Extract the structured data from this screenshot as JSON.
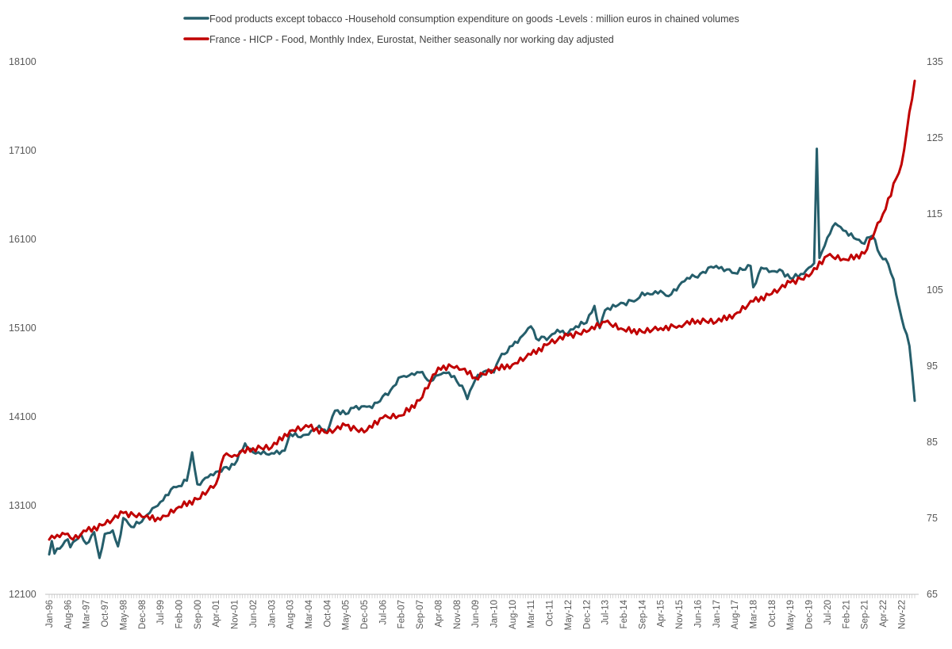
{
  "chart_data": {
    "type": "line",
    "title": "",
    "xlabel": "",
    "ylabel_left": "",
    "ylabel_right": "",
    "x_start": "Jan-96",
    "x_end": "Apr-23",
    "x_tick_labels": [
      "Jan-96",
      "Aug-96",
      "Mar-97",
      "Oct-97",
      "May-98",
      "Dec-98",
      "Jul-99",
      "Feb-00",
      "Sep-00",
      "Apr-01",
      "Nov-01",
      "Jun-02",
      "Jan-03",
      "Aug-03",
      "Mar-04",
      "Oct-04",
      "May-05",
      "Dec-05",
      "Jul-06",
      "Feb-07",
      "Sep-07",
      "Apr-08",
      "Nov-08",
      "Jun-09",
      "Jan-10",
      "Aug-10",
      "Mar-11",
      "Oct-11",
      "May-12",
      "Dec-12",
      "Jul-13",
      "Feb-14",
      "Sep-14",
      "Apr-15",
      "Nov-15",
      "Jun-16",
      "Jan-17",
      "Aug-17",
      "Mar-18",
      "Oct-18",
      "May-19",
      "Dec-19",
      "Jul-20",
      "Feb-21",
      "Sep-21",
      "Apr-22",
      "Nov-22"
    ],
    "y_left": {
      "min": 12100,
      "max": 18100,
      "ticks": [
        "12100",
        "13100",
        "14100",
        "15100",
        "16100",
        "17100",
        "18100"
      ]
    },
    "y_right": {
      "min": 65,
      "max": 135,
      "ticks": [
        "65",
        "75",
        "85",
        "95",
        "105",
        "115",
        "125",
        "135"
      ]
    },
    "legend_position": "top",
    "series": [
      {
        "name": "Food products except tobacco -Household consumption expenditure on goods -Levels : million euros in chained volumes",
        "axis": "left",
        "color": "#255e6b",
        "anchors": [
          [
            "Jan-96",
            12550
          ],
          [
            "Feb-96",
            12700
          ],
          [
            "Mar-96",
            12560
          ],
          [
            "Jun-96",
            12650
          ],
          [
            "Aug-96",
            12720
          ],
          [
            "Sep-96",
            12630
          ],
          [
            "Jan-97",
            12780
          ],
          [
            "Mar-97",
            12670
          ],
          [
            "Jun-97",
            12800
          ],
          [
            "Aug-97",
            12510
          ],
          [
            "Oct-97",
            12780
          ],
          [
            "Jan-98",
            12820
          ],
          [
            "Mar-98",
            12640
          ],
          [
            "May-98",
            12960
          ],
          [
            "Aug-98",
            12860
          ],
          [
            "Dec-98",
            12920
          ],
          [
            "Mar-99",
            13020
          ],
          [
            "Jul-99",
            13140
          ],
          [
            "Dec-99",
            13310
          ],
          [
            "Feb-00",
            13320
          ],
          [
            "May-00",
            13380
          ],
          [
            "Jul-00",
            13700
          ],
          [
            "Sep-00",
            13340
          ],
          [
            "Apr-01",
            13480
          ],
          [
            "Nov-01",
            13560
          ],
          [
            "Mar-02",
            13800
          ],
          [
            "Jun-02",
            13700
          ],
          [
            "Sep-02",
            13680
          ],
          [
            "Jan-03",
            13690
          ],
          [
            "Jun-03",
            13720
          ],
          [
            "Aug-03",
            13910
          ],
          [
            "Dec-03",
            13870
          ],
          [
            "Mar-04",
            13900
          ],
          [
            "Jul-04",
            14000
          ],
          [
            "Oct-04",
            13920
          ],
          [
            "Jan-05",
            14170
          ],
          [
            "May-05",
            14130
          ],
          [
            "Aug-05",
            14200
          ],
          [
            "Dec-05",
            14220
          ],
          [
            "Mar-06",
            14200
          ],
          [
            "Jul-06",
            14330
          ],
          [
            "Oct-06",
            14400
          ],
          [
            "Feb-07",
            14550
          ],
          [
            "Apr-07",
            14550
          ],
          [
            "Sep-07",
            14600
          ],
          [
            "Jan-08",
            14500
          ],
          [
            "Apr-08",
            14570
          ],
          [
            "Aug-08",
            14600
          ],
          [
            "Nov-08",
            14500
          ],
          [
            "Jan-09",
            14450
          ],
          [
            "Mar-09",
            14300
          ],
          [
            "Jun-09",
            14520
          ],
          [
            "Oct-09",
            14620
          ],
          [
            "Jan-10",
            14600
          ],
          [
            "Mar-10",
            14750
          ],
          [
            "Aug-10",
            14900
          ],
          [
            "Dec-10",
            15020
          ],
          [
            "Mar-11",
            15120
          ],
          [
            "May-11",
            14980
          ],
          [
            "Oct-11",
            15000
          ],
          [
            "Jan-12",
            15080
          ],
          [
            "May-12",
            15040
          ],
          [
            "Aug-12",
            15120
          ],
          [
            "Dec-12",
            15160
          ],
          [
            "Mar-13",
            15350
          ],
          [
            "May-13",
            15100
          ],
          [
            "Jul-13",
            15300
          ],
          [
            "Dec-13",
            15360
          ],
          [
            "Feb-14",
            15380
          ],
          [
            "Jul-14",
            15420
          ],
          [
            "Sep-14",
            15500
          ],
          [
            "Dec-14",
            15480
          ],
          [
            "Apr-15",
            15520
          ],
          [
            "Jul-15",
            15460
          ],
          [
            "Nov-15",
            15580
          ],
          [
            "Apr-16",
            15700
          ],
          [
            "Jun-16",
            15670
          ],
          [
            "Oct-16",
            15780
          ],
          [
            "Jan-17",
            15800
          ],
          [
            "Aug-17",
            15720
          ],
          [
            "Feb-18",
            15800
          ],
          [
            "Mar-18",
            15560
          ],
          [
            "Jun-18",
            15780
          ],
          [
            "Oct-18",
            15740
          ],
          [
            "Jan-19",
            15760
          ],
          [
            "May-19",
            15660
          ],
          [
            "Oct-19",
            15710
          ],
          [
            "Dec-19",
            15780
          ],
          [
            "Feb-20",
            15830
          ],
          [
            "Mar-20",
            17120
          ],
          [
            "Apr-20",
            15890
          ],
          [
            "Jul-20",
            16120
          ],
          [
            "Oct-20",
            16280
          ],
          [
            "Jan-21",
            16200
          ],
          [
            "Jun-21",
            16100
          ],
          [
            "Aug-21",
            16060
          ],
          [
            "Dec-21",
            16140
          ],
          [
            "Mar-22",
            15920
          ],
          [
            "May-22",
            15880
          ],
          [
            "Aug-22",
            15650
          ],
          [
            "Oct-22",
            15350
          ],
          [
            "Nov-22",
            15220
          ],
          [
            "Feb-23",
            14900
          ],
          [
            "Apr-23",
            14280
          ]
        ],
        "noise": [
          0,
          12,
          -18,
          26,
          -6,
          -22,
          15,
          8,
          -30,
          20,
          4,
          -12,
          28,
          -16,
          10,
          -24,
          6,
          18,
          -8,
          14,
          -20,
          30,
          -4,
          -14,
          22,
          -10,
          16,
          -26,
          2,
          12
        ]
      },
      {
        "name": "France - HICP - Food, Monthly Index, Eurostat, Neither seasonally nor working day adjusted",
        "axis": "right",
        "color": "#c00000",
        "anchors": [
          [
            "Jan-96",
            72.2
          ],
          [
            "Apr-96",
            72.8
          ],
          [
            "Jul-96",
            72.9
          ],
          [
            "Oct-96",
            72.2
          ],
          [
            "Mar-97",
            73.3
          ],
          [
            "Oct-97",
            74.2
          ],
          [
            "May-98",
            75.7
          ],
          [
            "Dec-98",
            75.2
          ],
          [
            "Jul-99",
            74.8
          ],
          [
            "Feb-00",
            76.5
          ],
          [
            "Sep-00",
            77.5
          ],
          [
            "Apr-01",
            79.5
          ],
          [
            "Jul-01",
            83.2
          ],
          [
            "Nov-01",
            83.3
          ],
          [
            "Jun-02",
            84.2
          ],
          [
            "Jan-03",
            84.3
          ],
          [
            "Aug-03",
            86.5
          ],
          [
            "Mar-04",
            87.0
          ],
          [
            "Oct-04",
            86.2
          ],
          [
            "May-05",
            87.2
          ],
          [
            "Dec-05",
            86.3
          ],
          [
            "Jul-06",
            88.2
          ],
          [
            "Feb-07",
            88.5
          ],
          [
            "Sep-07",
            90.5
          ],
          [
            "Apr-08",
            94.8
          ],
          [
            "Nov-08",
            95.0
          ],
          [
            "Jun-09",
            93.5
          ],
          [
            "Jan-10",
            94.5
          ],
          [
            "Aug-10",
            95.2
          ],
          [
            "Mar-11",
            96.5
          ],
          [
            "Oct-11",
            98.0
          ],
          [
            "May-12",
            99.0
          ],
          [
            "Dec-12",
            99.5
          ],
          [
            "Jul-13",
            100.8
          ],
          [
            "Feb-14",
            99.8
          ],
          [
            "Sep-14",
            99.5
          ],
          [
            "Apr-15",
            100.0
          ],
          [
            "Nov-15",
            100.3
          ],
          [
            "Jun-16",
            101.0
          ],
          [
            "Jan-17",
            100.8
          ],
          [
            "Aug-17",
            101.8
          ],
          [
            "Mar-18",
            103.5
          ],
          [
            "Oct-18",
            104.5
          ],
          [
            "May-19",
            106.0
          ],
          [
            "Dec-19",
            106.8
          ],
          [
            "Jul-20",
            109.5
          ],
          [
            "Feb-21",
            109.0
          ],
          [
            "Sep-21",
            109.8
          ],
          [
            "Apr-22",
            115.0
          ],
          [
            "Nov-22",
            121.5
          ],
          [
            "Apr-23",
            132.5
          ]
        ],
        "noise": [
          0,
          0.3,
          -0.2,
          0.4,
          -0.3,
          0.2,
          -0.4,
          0.3,
          0,
          -0.2,
          0.35,
          -0.25
        ]
      }
    ]
  }
}
